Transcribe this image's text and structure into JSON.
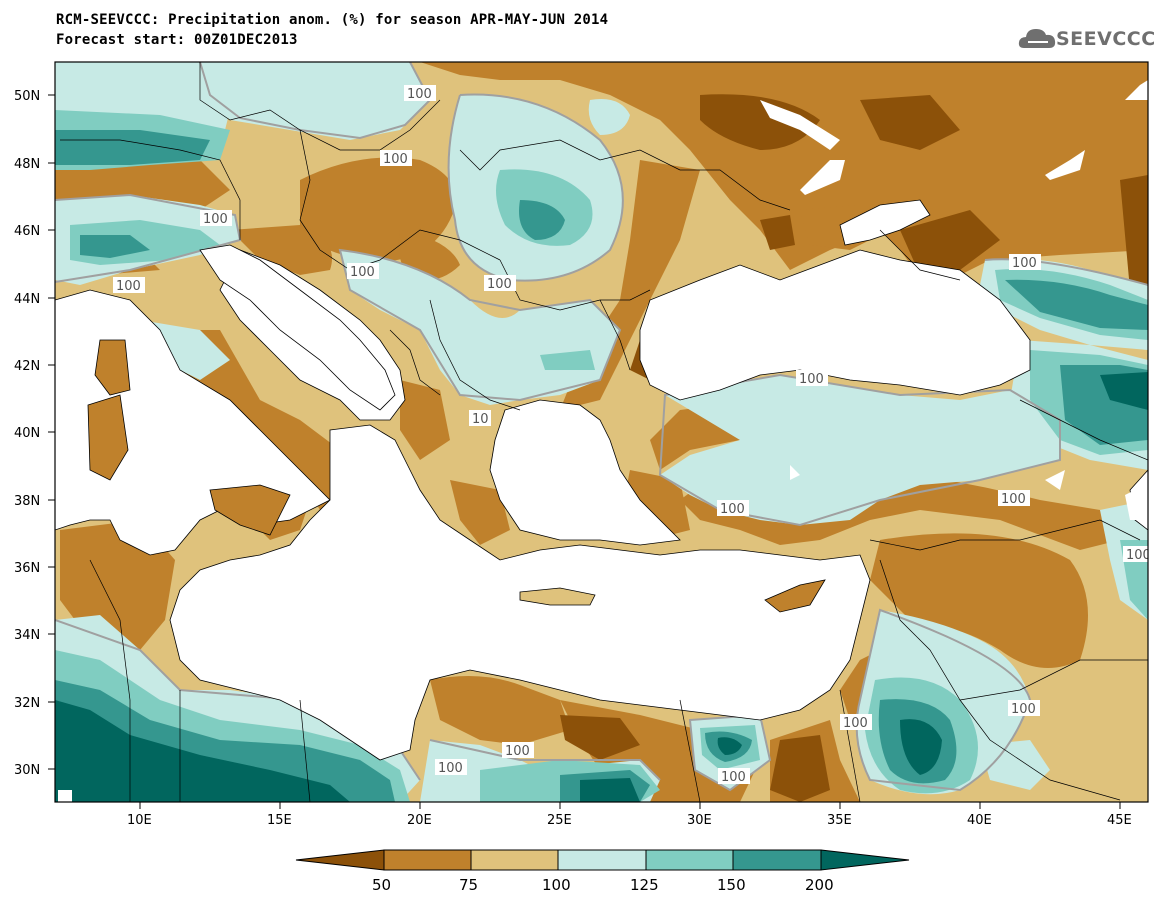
{
  "title": {
    "line1": "RCM-SEEVCCC: Precipitation anom. (%) for season APR-MAY-JUN 2014",
    "line2": "Forecast start: 00Z01DEC2013"
  },
  "logo": {
    "text": "SEEVCCC",
    "icon": "cloud-logo-icon"
  },
  "axes": {
    "lat_labels": [
      "50N",
      "48N",
      "46N",
      "44N",
      "42N",
      "40N",
      "38N",
      "36N",
      "34N",
      "32N",
      "30N"
    ],
    "lon_labels": [
      "10E",
      "15E",
      "20E",
      "25E",
      "30E",
      "35E",
      "40E",
      "45E"
    ]
  },
  "colorbar": {
    "levels": [
      "50",
      "75",
      "100",
      "125",
      "150",
      "200"
    ],
    "colors": {
      "lt50": "#8c5109",
      "50_75": "#bf812c",
      "75_100": "#dfc27c",
      "100_125": "#c7eae5",
      "125_150": "#80cdc1",
      "150_200": "#35978f",
      "gt200": "#01665e"
    }
  },
  "contour_labels": [
    "100",
    "100",
    "100",
    "100",
    "100",
    "100",
    "100",
    "100",
    "100",
    "100",
    "100",
    "100",
    "100",
    "100",
    "100",
    "100",
    "100"
  ],
  "contour_label_partial": "10",
  "colors": {
    "contour_line": "#a0a0a0",
    "land_border": "#000000",
    "sea": "#ffffff"
  }
}
